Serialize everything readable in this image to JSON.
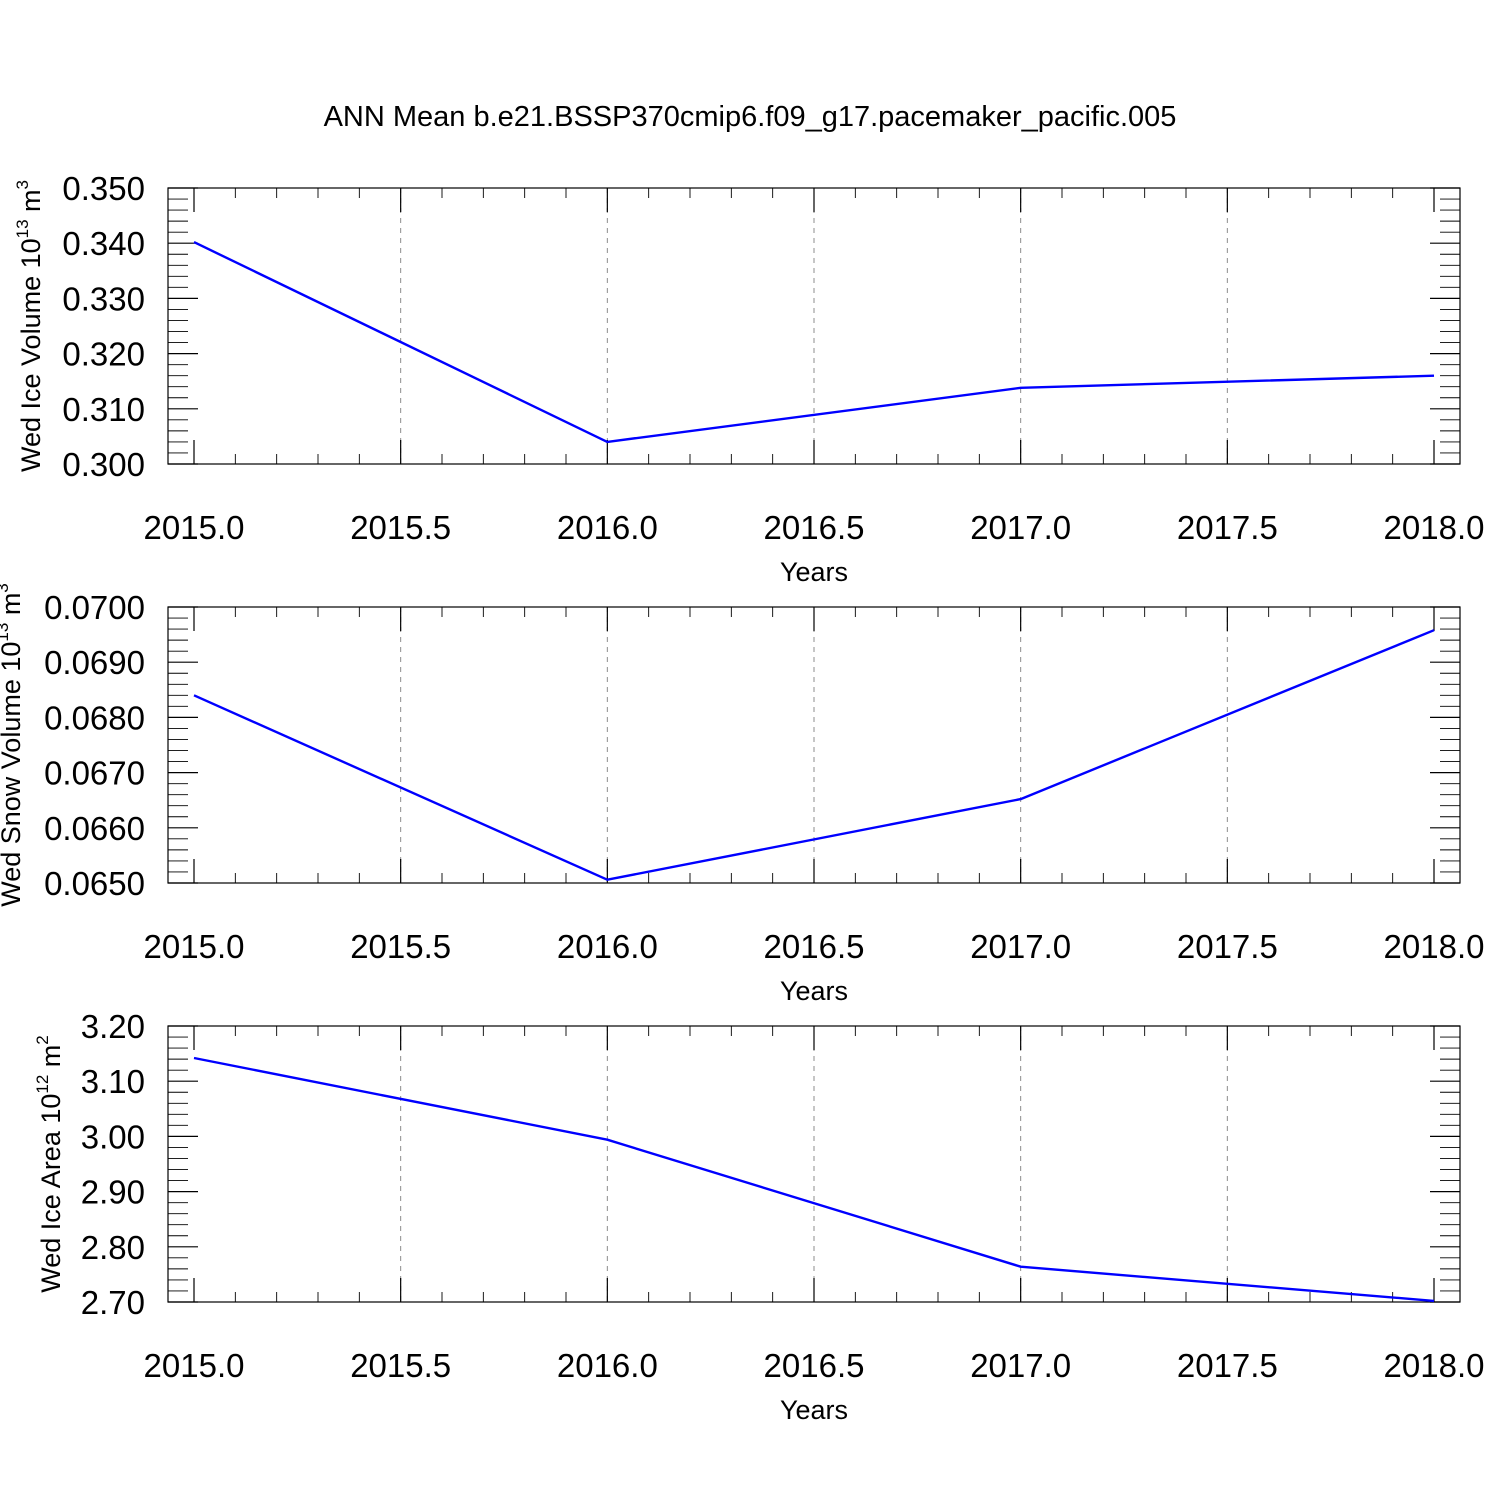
{
  "title": "ANN Mean b.e21.BSSP370cmip6.f09_g17.pacemaker_pacific.005",
  "colors": {
    "line": "#0000ff",
    "grid": "#8c8c8c",
    "axis": "#000000"
  },
  "chart_data": [
    {
      "type": "line",
      "xlabel": "Years",
      "ylabel": {
        "text": "Wed Ice Volume 10",
        "exp": "13",
        "unit": " m",
        "unit_exp": "3"
      },
      "xlim": [
        2015.0,
        2018.0
      ],
      "ylim": [
        0.3,
        0.35
      ],
      "x_ticks": [
        "2015.0",
        "2015.5",
        "2016.0",
        "2016.5",
        "2017.0",
        "2017.5",
        "2018.0"
      ],
      "y_ticks": [
        "0.300",
        "0.310",
        "0.320",
        "0.330",
        "0.340",
        "0.350"
      ],
      "grid": "vertical-dashed",
      "x": [
        2015,
        2016,
        2017,
        2018
      ],
      "values": [
        0.3402,
        0.304,
        0.3138,
        0.316
      ]
    },
    {
      "type": "line",
      "xlabel": "Years",
      "ylabel": {
        "text": "Wed Snow Volume 10",
        "exp": "13",
        "unit": " m",
        "unit_exp": "3"
      },
      "xlim": [
        2015.0,
        2018.0
      ],
      "ylim": [
        0.065,
        0.07
      ],
      "x_ticks": [
        "2015.0",
        "2015.5",
        "2016.0",
        "2016.5",
        "2017.0",
        "2017.5",
        "2018.0"
      ],
      "y_ticks": [
        "0.0650",
        "0.0660",
        "0.0670",
        "0.0680",
        "0.0690",
        "0.0700"
      ],
      "grid": "vertical-dashed",
      "x": [
        2015,
        2016,
        2017,
        2018
      ],
      "values": [
        0.0684,
        0.06506,
        0.06652,
        0.06958
      ]
    },
    {
      "type": "line",
      "xlabel": "Years",
      "ylabel": {
        "text": "Wed Ice Area 10",
        "exp": "12",
        "unit": " m",
        "unit_exp": "2"
      },
      "xlim": [
        2015.0,
        2018.0
      ],
      "ylim": [
        2.7,
        3.2
      ],
      "x_ticks": [
        "2015.0",
        "2015.5",
        "2016.0",
        "2016.5",
        "2017.0",
        "2017.5",
        "2018.0"
      ],
      "y_ticks": [
        "2.70",
        "2.80",
        "2.90",
        "3.00",
        "3.10",
        "3.20"
      ],
      "grid": "vertical-dashed",
      "x": [
        2015,
        2016,
        2017,
        2018
      ],
      "values": [
        3.142,
        2.994,
        2.764,
        2.702
      ]
    }
  ]
}
